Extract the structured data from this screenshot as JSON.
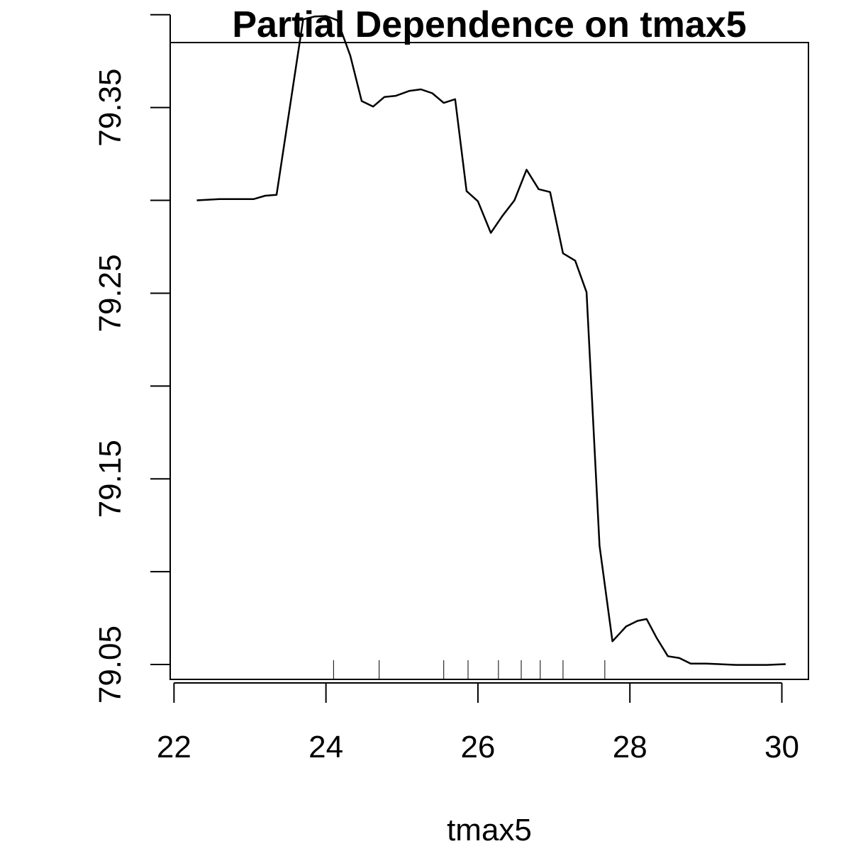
{
  "chart_data": {
    "type": "line",
    "title": "Partial Dependence on tmax5",
    "xlabel": "tmax5",
    "ylabel": "",
    "xlim": [
      21.95,
      30.35
    ],
    "ylim": [
      79.042,
      79.385
    ],
    "x_ticks": [
      22,
      24,
      26,
      28,
      30
    ],
    "x_tick_labels": [
      "22",
      "24",
      "26",
      "28",
      "30"
    ],
    "y_ticks": [
      79.05,
      79.1,
      79.15,
      79.2,
      79.25,
      79.3,
      79.35,
      79.4
    ],
    "y_tick_labels": [
      "79.05",
      "",
      "79.15",
      "",
      "79.25",
      "",
      "79.35",
      ""
    ],
    "grid": false,
    "series": [
      {
        "x": [
          22.3,
          22.6,
          23.05,
          23.2,
          23.35,
          23.7,
          23.85,
          24.0,
          24.15,
          24.32,
          24.47,
          24.62,
          24.77,
          24.92,
          25.1,
          25.25,
          25.4,
          25.55,
          25.7,
          25.85,
          26.0,
          26.17,
          26.32,
          26.48,
          26.64,
          26.8,
          26.95,
          27.12,
          27.28,
          27.43,
          27.6,
          27.77,
          27.95,
          28.1,
          28.22,
          28.35,
          28.5,
          28.65,
          28.8,
          29.0,
          29.4,
          29.8,
          30.05
        ],
        "y": [
          79.3,
          79.3007,
          79.3007,
          79.3025,
          79.303,
          79.3975,
          79.399,
          79.3993,
          79.397,
          79.378,
          79.3535,
          79.3505,
          79.3557,
          79.3563,
          79.359,
          79.3598,
          79.3577,
          79.3525,
          79.3545,
          79.305,
          79.2995,
          79.2825,
          79.2915,
          79.3,
          79.3165,
          79.306,
          79.3045,
          79.2715,
          79.2675,
          79.2505,
          79.114,
          79.0625,
          79.0705,
          79.0735,
          79.0745,
          79.0645,
          79.0545,
          79.0535,
          79.0505,
          79.0505,
          79.0498,
          79.0498,
          79.0502
        ]
      }
    ],
    "rug": [
      24.1,
      24.7,
      25.55,
      25.87,
      26.27,
      26.57,
      26.82,
      27.12,
      27.67
    ]
  }
}
